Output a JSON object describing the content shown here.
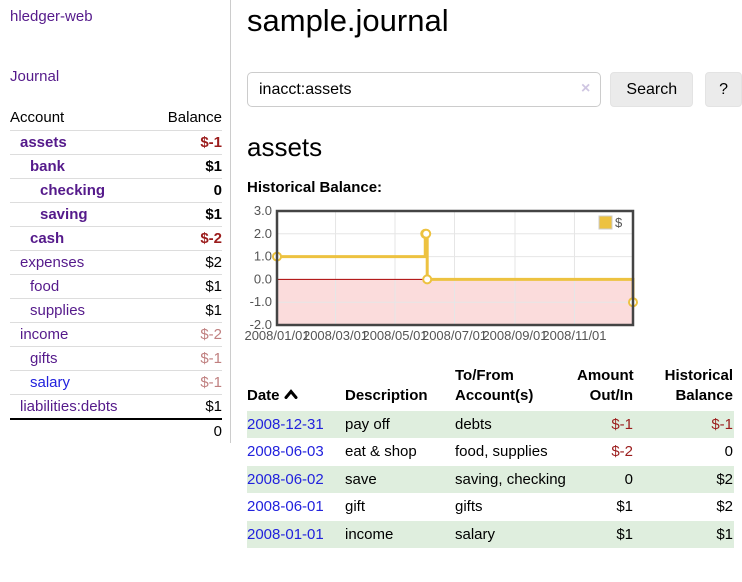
{
  "app": {
    "title": "hledger-web",
    "nav_journal": "Journal"
  },
  "colors": {
    "link_purple": "#551a8b",
    "link_blue": "#2222dd",
    "negative": "#9b1c1c",
    "negative_soft": "#c08080",
    "row_highlight": "#dfeede",
    "chart_line": "#edc240",
    "chart_marker_fill": "#ffffff",
    "chart_negative_fill": "#fbdcdc",
    "chart_zero_line": "#aa0000",
    "chart_grid": "#e6e6e6",
    "chart_border": "#444444",
    "chart_tick_text": "#545454",
    "legend_box_border": "#cccccc"
  },
  "sidebar": {
    "header": {
      "account": "Account",
      "balance": "Balance"
    },
    "accounts": [
      {
        "name": "assets",
        "depth": 0,
        "balance": "$-1",
        "bold": true,
        "neg": "strong"
      },
      {
        "name": "bank",
        "depth": 1,
        "balance": "$1",
        "bold": true,
        "neg": "none"
      },
      {
        "name": "checking",
        "depth": 2,
        "balance": "0",
        "bold": true,
        "neg": "none"
      },
      {
        "name": "saving",
        "depth": 2,
        "balance": "$1",
        "bold": true,
        "neg": "none"
      },
      {
        "name": "cash",
        "depth": 1,
        "balance": "$-2",
        "bold": true,
        "neg": "strong"
      },
      {
        "name": "expenses",
        "depth": 0,
        "balance": "$2",
        "bold": false,
        "neg": "none"
      },
      {
        "name": "food",
        "depth": 1,
        "balance": "$1",
        "bold": false,
        "neg": "none"
      },
      {
        "name": "supplies",
        "depth": 1,
        "balance": "$1",
        "bold": false,
        "neg": "none"
      },
      {
        "name": "income",
        "depth": 0,
        "balance": "$-2",
        "bold": false,
        "neg": "soft"
      },
      {
        "name": "gifts",
        "depth": 1,
        "balance": "$-1",
        "bold": false,
        "neg": "soft"
      },
      {
        "name": "salary",
        "depth": 1,
        "balance": "$-1",
        "bold": false,
        "neg": "soft",
        "blue": true
      },
      {
        "name": "liabilities:debts",
        "depth": 0,
        "balance": "$1",
        "bold": false,
        "neg": "none"
      }
    ],
    "total": "0"
  },
  "header": {
    "title": "sample.journal"
  },
  "search": {
    "value": "inacct:assets",
    "clear_icon": "×",
    "button_label": "Search",
    "help_label": "?"
  },
  "account_page": {
    "heading": "assets",
    "chart_label": "Historical Balance:"
  },
  "chart_data": {
    "type": "line",
    "step": true,
    "title": "Historical Balance:",
    "legend": [
      {
        "name": "$"
      }
    ],
    "legend_position": "top-right",
    "grid": true,
    "ylim": [
      -2,
      3
    ],
    "y_ticks": [
      "3.0",
      "2.0",
      "1.0",
      "0.0",
      "-1.0",
      "-2.0"
    ],
    "y_tick_values": [
      3,
      2,
      1,
      0,
      -1,
      -2
    ],
    "xlim_days": [
      0,
      365
    ],
    "x_ticks": [
      {
        "label": "2008/01/01",
        "day": 0
      },
      {
        "label": "2008/03/01",
        "day": 60
      },
      {
        "label": "2008/05/01",
        "day": 121
      },
      {
        "label": "2008/07/01",
        "day": 182
      },
      {
        "label": "2008/09/01",
        "day": 244
      },
      {
        "label": "2008/11/01",
        "day": 305
      }
    ],
    "series": [
      {
        "name": "$",
        "points": [
          {
            "date": "2008-01-01",
            "day": 0,
            "value": 1
          },
          {
            "date": "2008-06-01",
            "day": 152,
            "value": 2
          },
          {
            "date": "2008-06-02",
            "day": 153,
            "value": 2
          },
          {
            "date": "2008-06-03",
            "day": 154,
            "value": 0
          },
          {
            "date": "2008-12-31",
            "day": 365,
            "value": -1
          }
        ]
      }
    ],
    "negative_region": {
      "from": 0,
      "to": -2
    }
  },
  "register": {
    "columns": [
      {
        "label": "Date",
        "align": "left",
        "sortable": true,
        "sort": "asc"
      },
      {
        "label": "Description",
        "align": "left"
      },
      {
        "label": "To/From\nAccount(s)",
        "align": "left"
      },
      {
        "label": "Amount\nOut/In",
        "align": "right"
      },
      {
        "label": "Historical\nBalance",
        "align": "right"
      }
    ],
    "rows": [
      {
        "date": "2008-12-31",
        "description": "pay off",
        "accounts": "debts",
        "amount": "$-1",
        "amount_neg": true,
        "balance": "$-1",
        "balance_neg": true,
        "highlight": true
      },
      {
        "date": "2008-06-03",
        "description": "eat & shop",
        "accounts": "food, supplies",
        "amount": "$-2",
        "amount_neg": true,
        "balance": "0",
        "balance_neg": false,
        "highlight": false
      },
      {
        "date": "2008-06-02",
        "description": "save",
        "accounts": "saving, checking",
        "amount": "0",
        "amount_neg": false,
        "balance": "$2",
        "balance_neg": false,
        "highlight": true
      },
      {
        "date": "2008-06-01",
        "description": "gift",
        "accounts": "gifts",
        "amount": "$1",
        "amount_neg": false,
        "balance": "$2",
        "balance_neg": false,
        "highlight": false
      },
      {
        "date": "2008-01-01",
        "description": "income",
        "accounts": "salary",
        "amount": "$1",
        "amount_neg": false,
        "balance": "$1",
        "balance_neg": false,
        "highlight": true
      }
    ]
  }
}
